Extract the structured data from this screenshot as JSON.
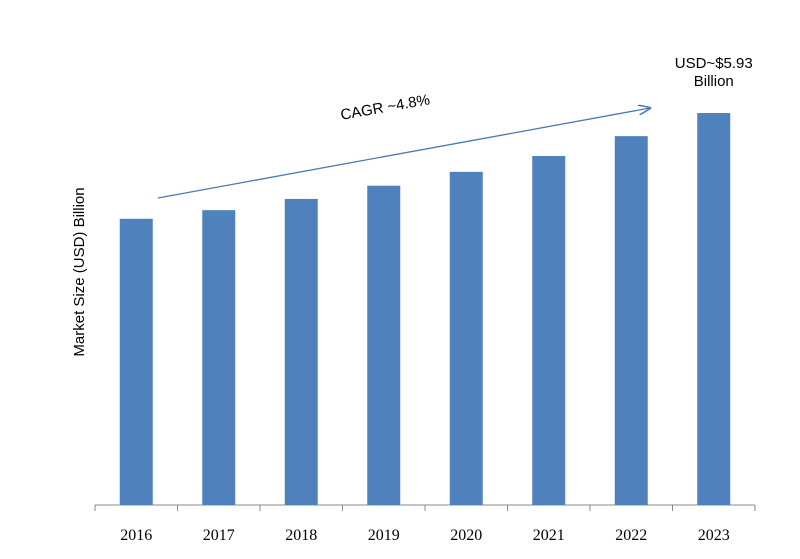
{
  "chart_data": {
    "type": "bar",
    "y_axis_label": "Market Size (USD) Billion",
    "annotation": "CAGR ~4.8%",
    "categories": [
      "2016",
      "2017",
      "2018",
      "2019",
      "2020",
      "2021",
      "2022",
      "2023"
    ],
    "values": [
      4.33,
      4.46,
      4.63,
      4.83,
      5.04,
      5.28,
      5.58,
      5.93
    ],
    "value_labels": [
      null,
      null,
      null,
      null,
      null,
      null,
      null,
      "USD~$5.93 Billion"
    ],
    "color": "#4f81bd"
  }
}
